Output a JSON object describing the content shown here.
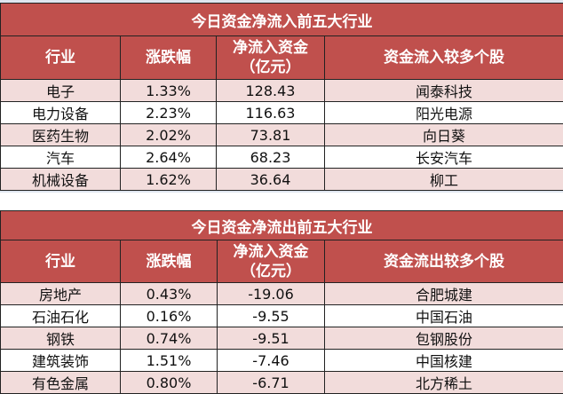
{
  "colors": {
    "header": "#c0504d",
    "row_alt": "#f2dcdb"
  },
  "inflow": {
    "title": "今日资金净流入前五大行业",
    "headers": [
      "行业",
      "涨跌幅",
      "净流入资金",
      "（亿元）",
      "资金流入较多个股"
    ],
    "rows": [
      [
        "电子",
        "1.33%",
        "128.43",
        "闻泰科技"
      ],
      [
        "电力设备",
        "2.23%",
        "116.63",
        "阳光电源"
      ],
      [
        "医药生物",
        "2.02%",
        "73.81",
        "向日葵"
      ],
      [
        "汽车",
        "2.64%",
        "68.23",
        "长安汽车"
      ],
      [
        "机械设备",
        "1.62%",
        "36.64",
        "柳工"
      ]
    ]
  },
  "outflow": {
    "title": "今日资金净流出前五大行业",
    "headers": [
      "行业",
      "涨跌幅",
      "净流入资金",
      "（亿元）",
      "资金流出较多个股"
    ],
    "rows": [
      [
        "房地产",
        "0.43%",
        "-19.06",
        "合肥城建"
      ],
      [
        "石油石化",
        "0.16%",
        "-9.55",
        "中国石油"
      ],
      [
        "钢铁",
        "0.74%",
        "-9.51",
        "包钢股份"
      ],
      [
        "建筑装饰",
        "1.51%",
        "-7.46",
        "中国核建"
      ],
      [
        "有色金属",
        "0.80%",
        "-6.71",
        "北方稀土"
      ]
    ]
  }
}
